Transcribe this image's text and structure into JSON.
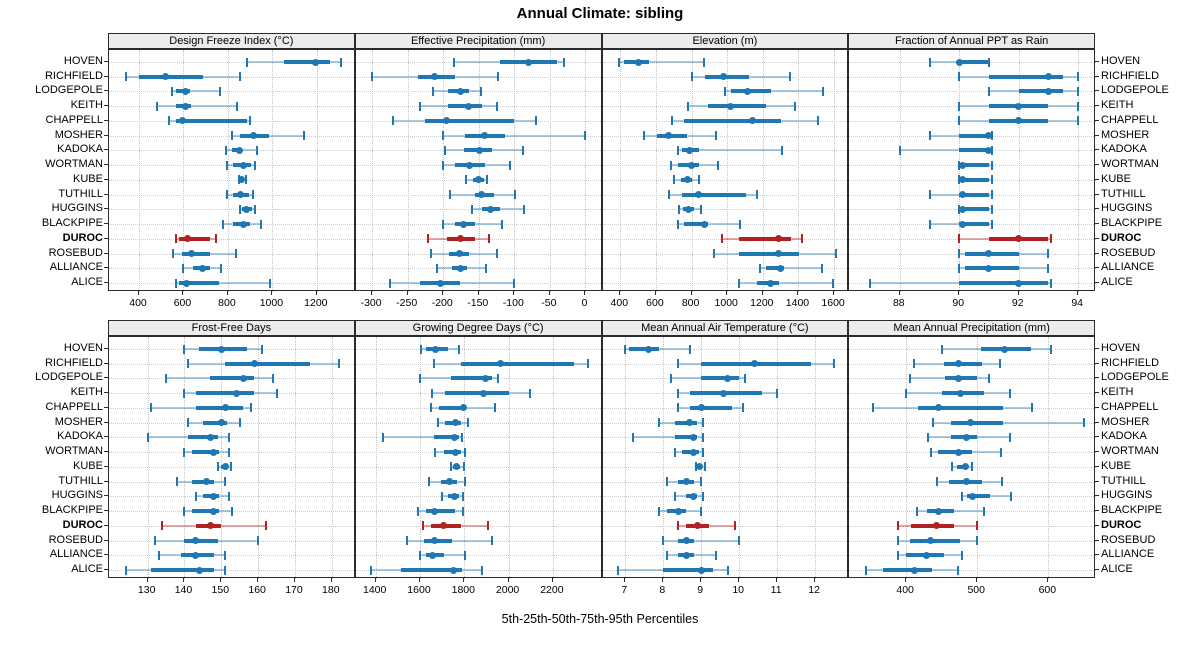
{
  "title": "Annual Climate: sibling",
  "footer": "5th-25th-50th-75th-95th Percentiles",
  "colors": {
    "series_blue": "#1F77B4",
    "series_blue_light": "rgba(31,119,180,0.38)",
    "highlight_red": "#B22222",
    "highlight_red_light": "rgba(178,34,34,0.38)",
    "strip_bg": "#ECECEC",
    "panel_border": "#2B2B2B",
    "grid": "#C8C8C8"
  },
  "chart_data": {
    "type": "scatter",
    "variant": "trellis-percentile-interval-dotplot",
    "title": "Annual Climate: sibling",
    "xlabel": "5th-25th-50th-75th-95th Percentiles",
    "legend_position": "none",
    "grid": "dotted",
    "percentiles": [
      5,
      25,
      50,
      75,
      95
    ],
    "stations": [
      "HOVEN",
      "RICHFIELD",
      "LODGEPOLE",
      "KEITH",
      "CHAPPELL",
      "MOSHER",
      "KADOKA",
      "WORTMAN",
      "KUBE",
      "TUTHILL",
      "HUGGINS",
      "BLACKPIPE",
      "DUROC",
      "ROSEBUD",
      "ALLIANCE",
      "ALICE"
    ],
    "highlight_station": "DUROC",
    "panels": [
      {
        "title": "Design Freeze Index (°C)",
        "ticks": [
          400,
          600,
          800,
          1000,
          1200
        ],
        "xlim": [
          265,
          1375
        ],
        "values": [
          [
            885,
            1050,
            1195,
            1260,
            1310
          ],
          [
            340,
            400,
            520,
            690,
            855
          ],
          [
            550,
            565,
            610,
            630,
            765
          ],
          [
            480,
            565,
            610,
            635,
            840
          ],
          [
            535,
            565,
            595,
            885,
            900
          ],
          [
            820,
            855,
            915,
            985,
            1140
          ],
          [
            790,
            820,
            850,
            865,
            930
          ],
          [
            795,
            825,
            870,
            905,
            920
          ],
          [
            850,
            855,
            860,
            870,
            880
          ],
          [
            795,
            825,
            855,
            895,
            915
          ],
          [
            855,
            865,
            885,
            910,
            920
          ],
          [
            780,
            825,
            870,
            900,
            950
          ],
          [
            565,
            580,
            620,
            720,
            745
          ],
          [
            555,
            595,
            635,
            720,
            835
          ],
          [
            600,
            645,
            685,
            720,
            770
          ],
          [
            565,
            580,
            615,
            760,
            990
          ]
        ]
      },
      {
        "title": "Effective Precipitation (mm)",
        "ticks": [
          -300,
          -250,
          -200,
          -150,
          -100,
          -50,
          0
        ],
        "xlim": [
          -323,
          24
        ],
        "values": [
          [
            -185,
            -120,
            -80,
            -40,
            -30
          ],
          [
            -300,
            -235,
            -212,
            -183,
            -123
          ],
          [
            -215,
            -193,
            -176,
            -164,
            -147
          ],
          [
            -233,
            -193,
            -165,
            -145,
            -125
          ],
          [
            -270,
            -225,
            -195,
            -100,
            -70
          ],
          [
            -200,
            -170,
            -142,
            -113,
            0
          ],
          [
            -198,
            -171,
            -149,
            -131,
            -88
          ],
          [
            -200,
            -183,
            -163,
            -141,
            -106
          ],
          [
            -168,
            -158,
            -150,
            -143,
            -138
          ],
          [
            -190,
            -156,
            -146,
            -129,
            -99
          ],
          [
            -160,
            -146,
            -133,
            -120,
            -87
          ],
          [
            -200,
            -183,
            -171,
            -155,
            -118
          ],
          [
            -222,
            -195,
            -175,
            -155,
            -136
          ],
          [
            -217,
            -192,
            -177,
            -164,
            -124
          ],
          [
            -209,
            -188,
            -176,
            -167,
            -140
          ],
          [
            -275,
            -232,
            -204,
            -176,
            -100
          ]
        ]
      },
      {
        "title": "Elevation (m)",
        "ticks": [
          400,
          600,
          800,
          1000,
          1200,
          1400,
          1600
        ],
        "xlim": [
          300,
          1685
        ],
        "values": [
          [
            390,
            420,
            500,
            560,
            870
          ],
          [
            800,
            875,
            980,
            1125,
            1350
          ],
          [
            990,
            1020,
            1115,
            1245,
            1540
          ],
          [
            780,
            890,
            1020,
            1215,
            1380
          ],
          [
            690,
            760,
            1140,
            1300,
            1510
          ],
          [
            535,
            605,
            670,
            775,
            935
          ],
          [
            725,
            745,
            790,
            840,
            1305
          ],
          [
            685,
            725,
            800,
            840,
            950
          ],
          [
            700,
            740,
            775,
            805,
            840
          ],
          [
            675,
            745,
            840,
            1105,
            1165
          ],
          [
            730,
            750,
            780,
            815,
            855
          ],
          [
            725,
            760,
            870,
            890,
            1070
          ],
          [
            970,
            1065,
            1290,
            1360,
            1420
          ],
          [
            925,
            1065,
            1290,
            1405,
            1610
          ],
          [
            1185,
            1215,
            1300,
            1320,
            1530
          ],
          [
            1065,
            1165,
            1245,
            1290,
            1595
          ]
        ]
      },
      {
        "title": "Fraction of Annual PPT as Rain",
        "ticks": [
          88,
          90,
          92,
          94
        ],
        "xlim": [
          86.3,
          94.6
        ],
        "values": [
          [
            89,
            90,
            90,
            91,
            91
          ],
          [
            90,
            91,
            93,
            93.5,
            94
          ],
          [
            91,
            92,
            93,
            93.5,
            94
          ],
          [
            90,
            91,
            92,
            93,
            94
          ],
          [
            90,
            91,
            92,
            93,
            94
          ],
          [
            89,
            90,
            91,
            91,
            91.1
          ],
          [
            88,
            90,
            91,
            91,
            91.1
          ],
          [
            90,
            90,
            90.1,
            91,
            91.1
          ],
          [
            90,
            90,
            90.1,
            91,
            91.1
          ],
          [
            89,
            90,
            90.1,
            91,
            91.1
          ],
          [
            90,
            90,
            90.1,
            91,
            91.1
          ],
          [
            89,
            90,
            90.1,
            91,
            91.1
          ],
          [
            90,
            91,
            92,
            93,
            93.1
          ],
          [
            90,
            90.2,
            91,
            92,
            93
          ],
          [
            90,
            90.2,
            91,
            92,
            93
          ],
          [
            87,
            90,
            92,
            93,
            93.1
          ]
        ]
      },
      {
        "title": "Frost-Free Days",
        "ticks": [
          130,
          140,
          150,
          160,
          170,
          180
        ],
        "xlim": [
          119.5,
          186.5
        ],
        "values": [
          [
            140,
            144,
            150,
            157,
            161
          ],
          [
            141,
            151,
            159,
            174,
            182
          ],
          [
            135,
            147,
            156,
            159,
            164
          ],
          [
            140,
            143,
            154,
            159,
            165
          ],
          [
            131,
            143,
            151,
            156,
            158
          ],
          [
            141,
            145,
            150,
            151.5,
            155
          ],
          [
            130,
            141,
            147,
            149,
            152
          ],
          [
            140,
            142,
            148,
            149.5,
            152
          ],
          [
            149,
            150,
            151,
            151.5,
            152.5
          ],
          [
            138,
            142,
            146,
            148,
            151
          ],
          [
            143,
            145,
            148,
            149.5,
            152
          ],
          [
            140,
            142,
            148,
            149.5,
            153
          ],
          [
            134,
            143,
            147,
            150,
            162
          ],
          [
            132,
            140,
            143,
            149,
            160
          ],
          [
            133,
            139,
            143,
            148,
            151
          ],
          [
            124,
            131,
            144,
            148,
            151
          ]
        ]
      },
      {
        "title": "Growing Degree Days (°C)",
        "ticks": [
          1400,
          1600,
          1800,
          2000,
          2200
        ],
        "xlim": [
          1310,
          2424
        ],
        "values": [
          [
            1605,
            1625,
            1670,
            1725,
            1775
          ],
          [
            1665,
            1785,
            1965,
            2295,
            2360
          ],
          [
            1600,
            1740,
            1895,
            1925,
            1950
          ],
          [
            1655,
            1715,
            1885,
            2000,
            2095
          ],
          [
            1650,
            1685,
            1795,
            1805,
            1940
          ],
          [
            1680,
            1715,
            1760,
            1785,
            1815
          ],
          [
            1435,
            1665,
            1755,
            1775,
            1790
          ],
          [
            1670,
            1710,
            1760,
            1785,
            1805
          ],
          [
            1740,
            1750,
            1765,
            1780,
            1800
          ],
          [
            1640,
            1695,
            1735,
            1765,
            1805
          ],
          [
            1700,
            1725,
            1755,
            1775,
            1795
          ],
          [
            1590,
            1625,
            1665,
            1760,
            1795
          ],
          [
            1615,
            1650,
            1705,
            1785,
            1905
          ],
          [
            1540,
            1620,
            1665,
            1745,
            1925
          ],
          [
            1600,
            1625,
            1655,
            1710,
            1805
          ],
          [
            1380,
            1515,
            1750,
            1790,
            1880
          ]
        ]
      },
      {
        "title": "Mean Annual Air Temperature (°C)",
        "ticks": [
          7,
          8,
          9,
          10,
          11,
          12
        ],
        "xlim": [
          6.4,
          12.9
        ],
        "values": [
          [
            7.0,
            7.1,
            7.6,
            7.9,
            8.7
          ],
          [
            8.4,
            9.0,
            10.4,
            11.9,
            12.5
          ],
          [
            8.2,
            9.0,
            9.7,
            10.0,
            10.15
          ],
          [
            8.4,
            8.7,
            9.6,
            10.6,
            11.0
          ],
          [
            8.4,
            8.7,
            9.0,
            9.8,
            10.1
          ],
          [
            7.9,
            8.3,
            8.7,
            8.9,
            9.05
          ],
          [
            7.2,
            8.3,
            8.8,
            8.9,
            9.05
          ],
          [
            8.3,
            8.5,
            8.8,
            8.95,
            9.05
          ],
          [
            8.85,
            8.9,
            8.95,
            9.0,
            9.1
          ],
          [
            8.1,
            8.4,
            8.6,
            8.8,
            9.0
          ],
          [
            8.3,
            8.6,
            8.8,
            8.9,
            9.05
          ],
          [
            7.9,
            8.1,
            8.4,
            8.6,
            9.0
          ],
          [
            8.4,
            8.6,
            8.9,
            9.2,
            9.9
          ],
          [
            8.0,
            8.4,
            8.6,
            8.8,
            10.0
          ],
          [
            8.1,
            8.4,
            8.6,
            8.8,
            9.4
          ],
          [
            6.8,
            8.0,
            9.0,
            9.3,
            9.7
          ]
        ]
      },
      {
        "title": "Mean Annual Precipitation (mm)",
        "ticks": [
          400,
          500,
          600
        ],
        "xlim": [
          320,
          667
        ],
        "values": [
          [
            450,
            505,
            538,
            576,
            604
          ],
          [
            411,
            453,
            473,
            506,
            532
          ],
          [
            405,
            454,
            474,
            499,
            516
          ],
          [
            400,
            451,
            477,
            510,
            546
          ],
          [
            353,
            417,
            446,
            536,
            577
          ],
          [
            438,
            463,
            491,
            536,
            650
          ],
          [
            431,
            463,
            485,
            500,
            546
          ],
          [
            435,
            445,
            473,
            493,
            534
          ],
          [
            465,
            471,
            484,
            487,
            492
          ],
          [
            444,
            460,
            485,
            506,
            535
          ],
          [
            479,
            485,
            494,
            518,
            548
          ],
          [
            415,
            430,
            446,
            468,
            510
          ],
          [
            389,
            407,
            442,
            468,
            499
          ],
          [
            389,
            406,
            434,
            476,
            499
          ],
          [
            389,
            400,
            429,
            453,
            479
          ],
          [
            344,
            368,
            412,
            436,
            473
          ]
        ]
      }
    ]
  }
}
